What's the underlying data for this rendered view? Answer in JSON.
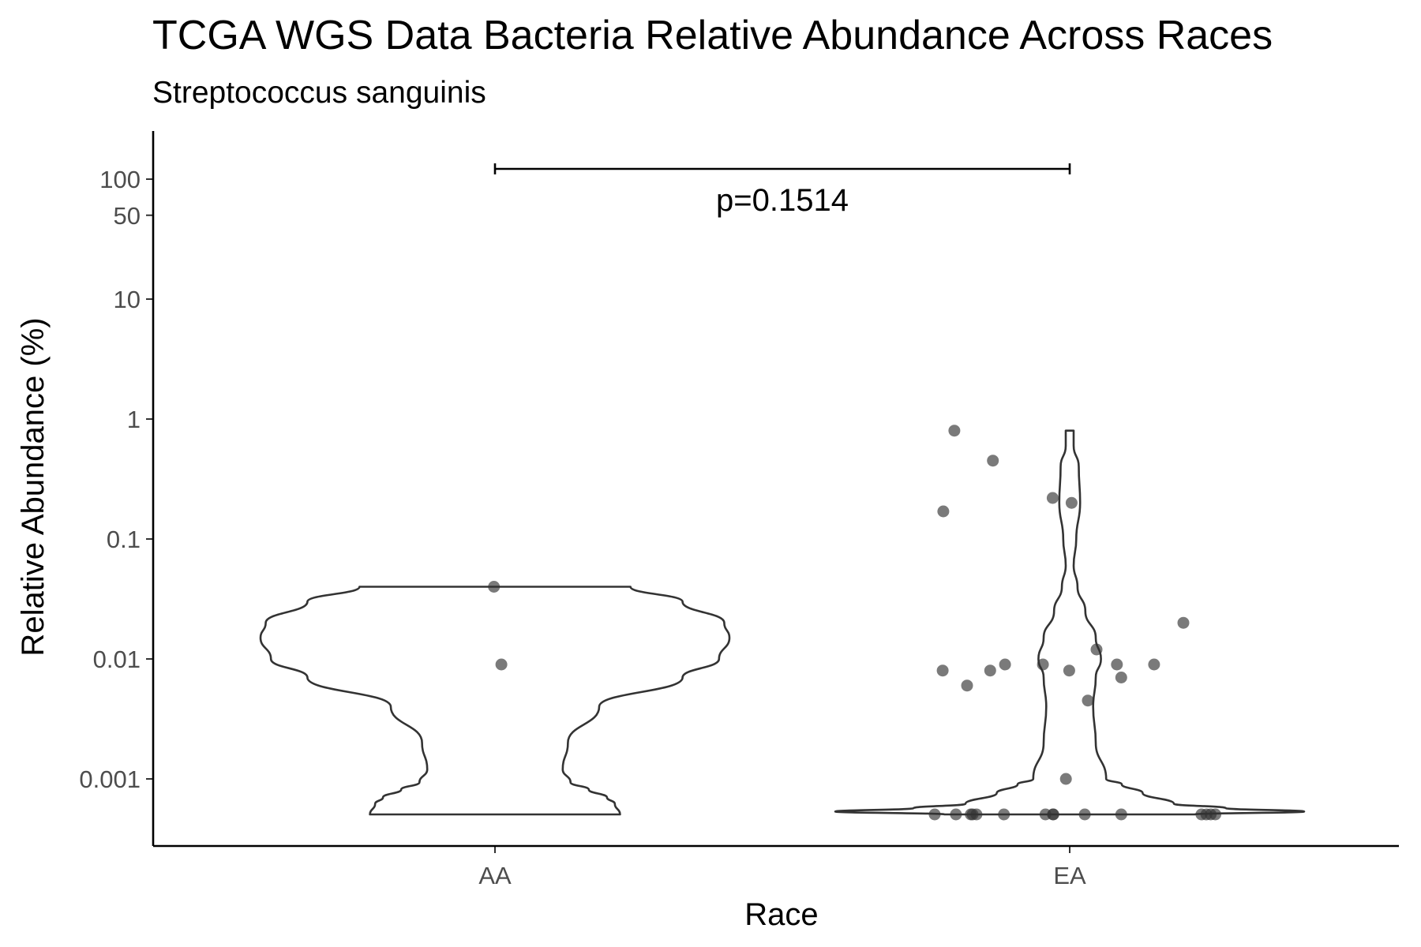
{
  "chart_data": {
    "type": "violin",
    "title": "TCGA WGS Data Bacteria Relative Abundance Across Races",
    "subtitle": "Streptococcus sanguinis",
    "xlabel": "Race",
    "ylabel": "Relative Abundance (%)",
    "categories": [
      "AA",
      "EA"
    ],
    "y_scale": "log",
    "y_ticks": [
      {
        "value": 100,
        "label": "100"
      },
      {
        "value": 50,
        "label": "50"
      },
      {
        "value": 10,
        "label": "10"
      },
      {
        "value": 1,
        "label": "1"
      },
      {
        "value": 0.1,
        "label": "0.1"
      },
      {
        "value": 0.01,
        "label": "0.01"
      },
      {
        "value": 0.001,
        "label": "0.001"
      }
    ],
    "grid": false,
    "comparison": {
      "groups": [
        "AA",
        "EA"
      ],
      "label": "p=0.1514"
    },
    "violins": [
      {
        "group": "AA",
        "profile": [
          [
            0.0001,
            0.48
          ],
          [
            0.0002,
            0.46
          ],
          [
            0.0003,
            0.43
          ],
          [
            0.0005,
            0.36
          ],
          [
            0.0008,
            0.29
          ],
          [
            0.0012,
            0.26
          ],
          [
            0.002,
            0.28
          ],
          [
            0.004,
            0.4
          ],
          [
            0.007,
            0.72
          ],
          [
            0.01,
            0.86
          ],
          [
            0.015,
            0.9
          ],
          [
            0.02,
            0.88
          ],
          [
            0.03,
            0.72
          ],
          [
            0.04,
            0.52
          ]
        ]
      },
      {
        "group": "EA",
        "profile": [
          [
            0.0001,
            0.48
          ],
          [
            0.00012,
            0.9
          ],
          [
            0.00015,
            0.6
          ],
          [
            0.0002,
            0.4
          ],
          [
            0.0004,
            0.28
          ],
          [
            0.0007,
            0.2
          ],
          [
            0.001,
            0.14
          ],
          [
            0.002,
            0.1
          ],
          [
            0.004,
            0.09
          ],
          [
            0.007,
            0.1
          ],
          [
            0.01,
            0.12
          ],
          [
            0.015,
            0.1
          ],
          [
            0.025,
            0.06
          ],
          [
            0.04,
            0.03
          ],
          [
            0.06,
            0.015
          ],
          [
            0.1,
            0.025
          ],
          [
            0.2,
            0.04
          ],
          [
            0.4,
            0.035
          ],
          [
            0.6,
            0.015
          ],
          [
            0.8,
            0.015
          ]
        ]
      }
    ],
    "points": [
      {
        "group": "AA",
        "y": 0.04
      },
      {
        "group": "AA",
        "y": 0.009
      },
      {
        "group": "EA",
        "y": 0.8
      },
      {
        "group": "EA",
        "y": 0.45
      },
      {
        "group": "EA",
        "y": 0.22
      },
      {
        "group": "EA",
        "y": 0.2
      },
      {
        "group": "EA",
        "y": 0.17
      },
      {
        "group": "EA",
        "y": 0.02
      },
      {
        "group": "EA",
        "y": 0.012
      },
      {
        "group": "EA",
        "y": 0.009
      },
      {
        "group": "EA",
        "y": 0.009
      },
      {
        "group": "EA",
        "y": 0.009
      },
      {
        "group": "EA",
        "y": 0.009
      },
      {
        "group": "EA",
        "y": 0.008
      },
      {
        "group": "EA",
        "y": 0.008
      },
      {
        "group": "EA",
        "y": 0.008
      },
      {
        "group": "EA",
        "y": 0.007
      },
      {
        "group": "EA",
        "y": 0.006
      },
      {
        "group": "EA",
        "y": 0.0045
      },
      {
        "group": "EA",
        "y": 0.001
      },
      {
        "group": "EA",
        "y": 0.0001
      },
      {
        "group": "EA",
        "y": 0.0001
      },
      {
        "group": "EA",
        "y": 0.0001
      },
      {
        "group": "EA",
        "y": 0.0001
      },
      {
        "group": "EA",
        "y": 0.0001
      },
      {
        "group": "EA",
        "y": 0.0001
      },
      {
        "group": "EA",
        "y": 0.0001
      },
      {
        "group": "EA",
        "y": 0.0001
      },
      {
        "group": "EA",
        "y": 0.0001
      },
      {
        "group": "EA",
        "y": 0.0001
      },
      {
        "group": "EA",
        "y": 0.0001
      },
      {
        "group": "EA",
        "y": 0.0001
      },
      {
        "group": "EA",
        "y": 0.0001
      },
      {
        "group": "EA",
        "y": 0.0001
      },
      {
        "group": "EA",
        "y": 0.0001
      }
    ],
    "colors": {
      "points": "#333333",
      "violin_outline": "#333333"
    }
  }
}
